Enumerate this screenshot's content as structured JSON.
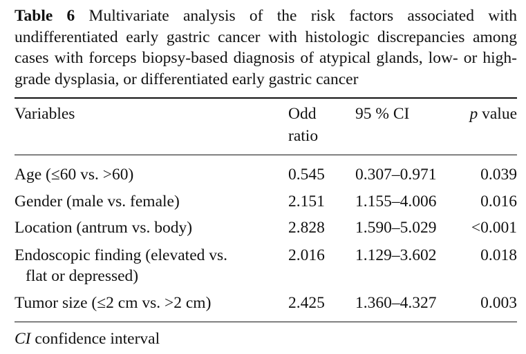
{
  "caption": {
    "label": "Table 6",
    "text": "Multivariate analysis of the risk factors associated with undifferentiated early gastric cancer with histologic discrepancies among cases with forceps biopsy-based diagnosis of atypical glands, low- or high-grade dysplasia, or differentiated early gastric cancer"
  },
  "header": {
    "variables": "Variables",
    "odd_ratio_line1": "Odd",
    "odd_ratio_line2": "ratio",
    "ci": "95 % CI",
    "p_italic": "p",
    "p_rest": " value"
  },
  "rows": [
    {
      "variable": "Age (≤60 vs. >60)",
      "odd_ratio": "0.545",
      "ci": "0.307–0.971",
      "p": "0.039"
    },
    {
      "variable": "Gender (male vs. female)",
      "odd_ratio": "2.151",
      "ci": "1.155–4.006",
      "p": "0.016"
    },
    {
      "variable": "Location (antrum vs. body)",
      "odd_ratio": "2.828",
      "ci": "1.590–5.029",
      "p": "<0.001"
    },
    {
      "variable_line1": "Endoscopic finding (elevated vs.",
      "variable_line2": "flat or depressed)",
      "odd_ratio": "2.016",
      "ci": "1.129–3.602",
      "p": "0.018"
    },
    {
      "variable": "Tumor size (≤2 cm vs. >2 cm)",
      "odd_ratio": "2.425",
      "ci": "1.360–4.327",
      "p": "0.003"
    }
  ],
  "footnote": {
    "abbr": "CI",
    "text": " confidence interval"
  }
}
